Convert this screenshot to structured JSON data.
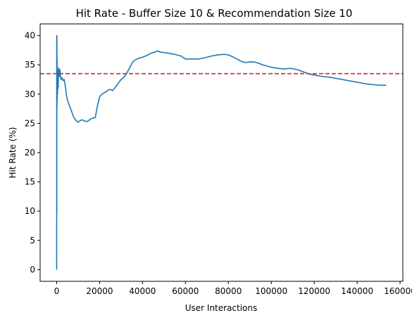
{
  "chart_data": {
    "type": "line",
    "title": "Hit Rate - Buffer Size 10 & Recommendation Size 10",
    "xlabel": "User Interactions",
    "ylabel": "Hit Rate (%)",
    "xlim": [
      -7700,
      161300
    ],
    "ylim": [
      -2,
      42
    ],
    "xticks": [
      0,
      20000,
      40000,
      60000,
      80000,
      100000,
      120000,
      140000,
      160000
    ],
    "yticks": [
      0,
      5,
      10,
      15,
      20,
      25,
      30,
      35,
      40
    ],
    "grid": false,
    "series": [
      {
        "color": "#1f77b4",
        "x": [
          0,
          30,
          60,
          100,
          150,
          200,
          250,
          300,
          400,
          500,
          700,
          900,
          1200,
          1500,
          2000,
          2500,
          3000,
          3500,
          4000,
          4500,
          5000,
          6000,
          7000,
          8000,
          9000,
          10000,
          11000,
          12000,
          13000,
          14000,
          15000,
          16000,
          17000,
          18000,
          19000,
          20000,
          21000,
          22000,
          23000,
          24000,
          25000,
          26000,
          27000,
          28000,
          29000,
          30000,
          31000,
          32000,
          33000,
          34000,
          35000,
          36000,
          38000,
          40000,
          42000,
          44000,
          46000,
          47000,
          48000,
          50000,
          52000,
          55000,
          58000,
          60000,
          63000,
          66000,
          69000,
          72000,
          75000,
          78000,
          80000,
          82000,
          84000,
          86000,
          88000,
          90000,
          92000,
          94000,
          96000,
          98000,
          100000,
          103000,
          106000,
          109000,
          112000,
          115000,
          118000,
          121000,
          124000,
          127000,
          130000,
          133000,
          136000,
          139000,
          142000,
          145000,
          148000,
          151000,
          153500
        ],
        "y": [
          0,
          40,
          10,
          40,
          28,
          36,
          29,
          33,
          30,
          34,
          31,
          34.5,
          33,
          34.2,
          32.5,
          32.8,
          32.3,
          32.5,
          31.5,
          30,
          29,
          28,
          27,
          26,
          25.5,
          25.2,
          25.5,
          25.6,
          25.4,
          25.3,
          25.5,
          25.8,
          25.9,
          26,
          28,
          29.5,
          30,
          30.2,
          30.4,
          30.7,
          30.8,
          30.6,
          31,
          31.5,
          32,
          32.5,
          32.8,
          33.2,
          33.8,
          34.5,
          35.2,
          35.7,
          36.1,
          36.3,
          36.6,
          37,
          37.2,
          37.4,
          37.2,
          37.1,
          37,
          36.8,
          36.5,
          36,
          36,
          36,
          36.2,
          36.5,
          36.7,
          36.8,
          36.7,
          36.4,
          36,
          35.6,
          35.4,
          35.5,
          35.5,
          35.3,
          35,
          34.8,
          34.6,
          34.4,
          34.3,
          34.4,
          34.2,
          33.8,
          33.4,
          33.2,
          33,
          32.9,
          32.7,
          32.5,
          32.3,
          32.1,
          31.9,
          31.7,
          31.6,
          31.5,
          31.5
        ]
      }
    ],
    "reference_line": {
      "y": 33.5,
      "color": "#d62728",
      "style": "dashed"
    }
  }
}
